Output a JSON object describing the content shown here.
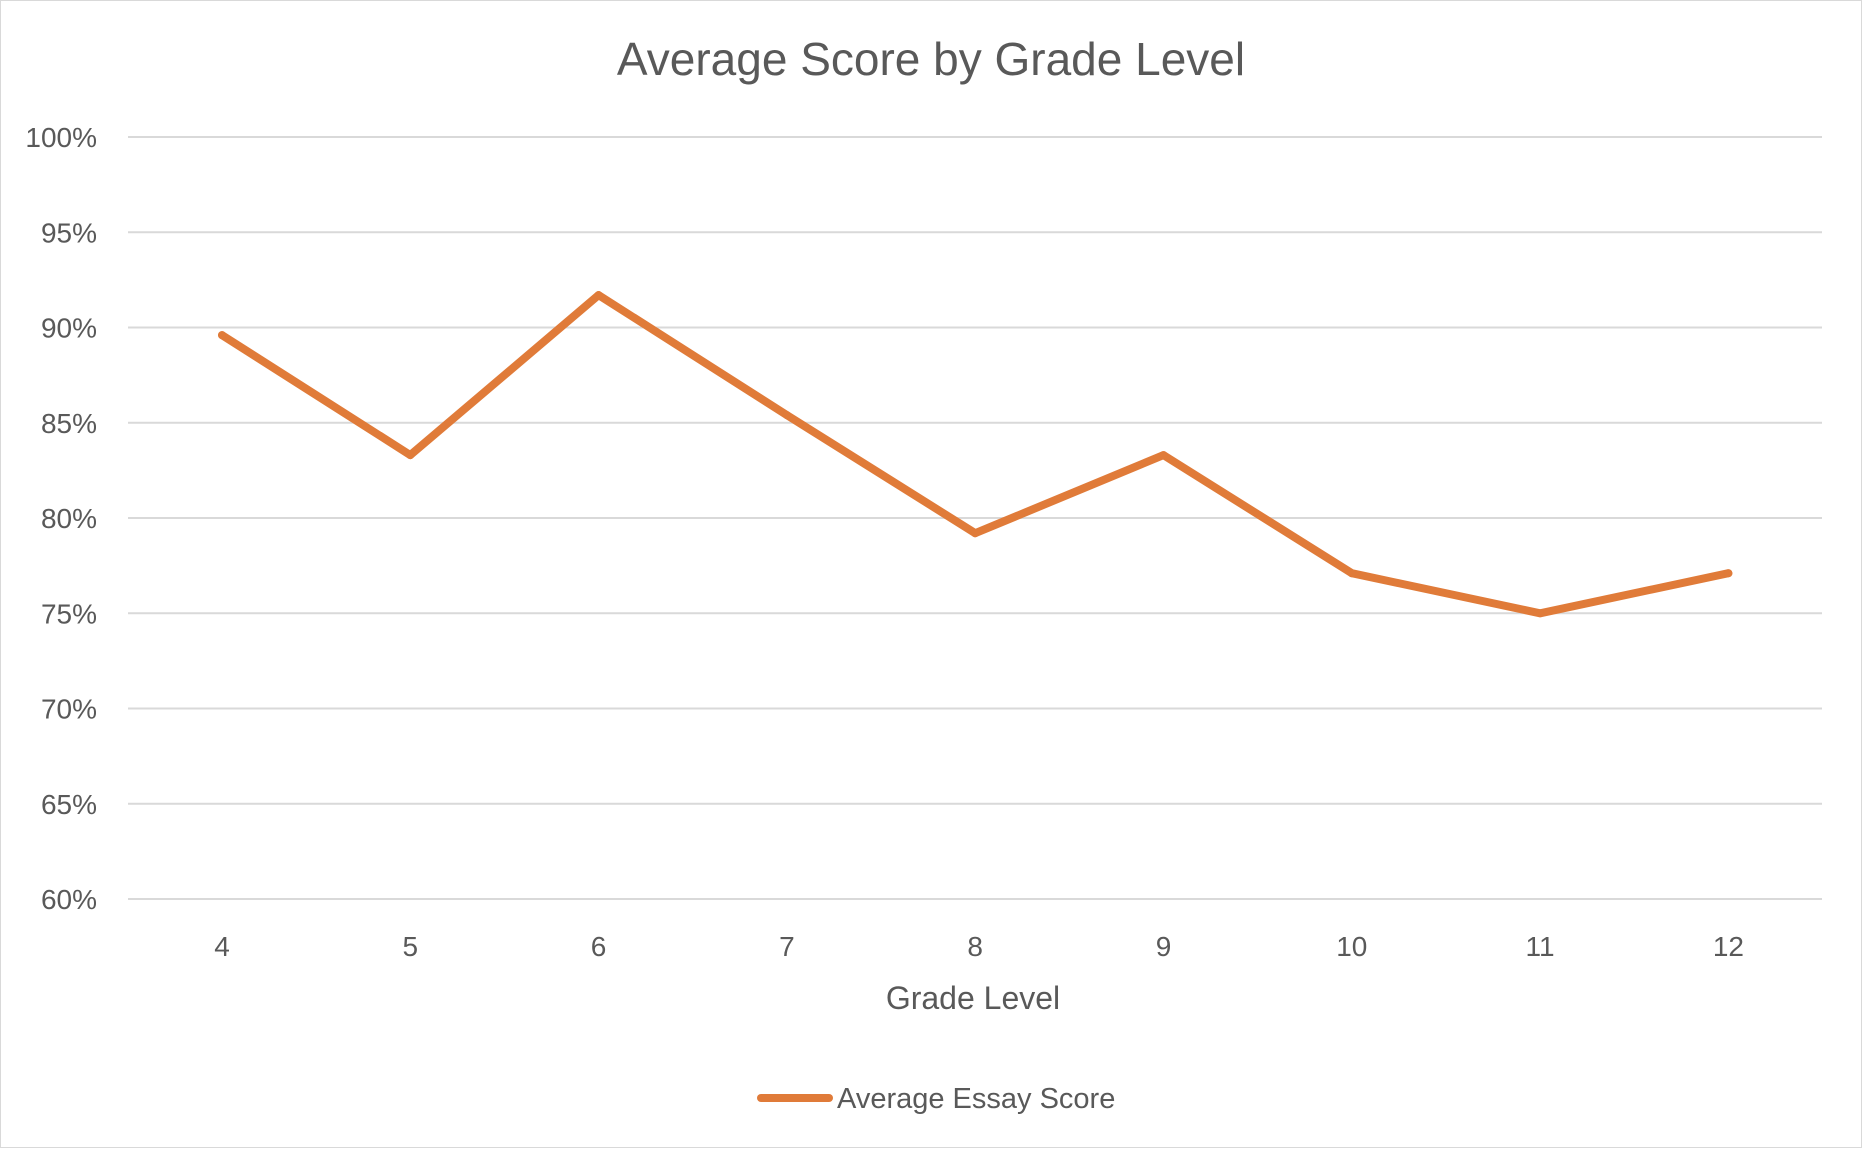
{
  "chart_data": {
    "type": "line",
    "title": "Average Score by Grade Level",
    "xlabel": "Grade Level",
    "ylabel": "",
    "categories": [
      "4",
      "5",
      "6",
      "7",
      "8",
      "9",
      "10",
      "11",
      "12"
    ],
    "series": [
      {
        "name": "Average Essay Score",
        "values": [
          0.896,
          0.833,
          0.917,
          0.854,
          0.792,
          0.833,
          0.771,
          0.75,
          0.771
        ],
        "color": "#E07B39"
      }
    ],
    "y_ticks": [
      "60%",
      "65%",
      "70%",
      "75%",
      "80%",
      "85%",
      "90%",
      "95%",
      "100%"
    ],
    "ylim": [
      0.6,
      1.0
    ],
    "grid": true,
    "legend_position": "bottom",
    "colors": {
      "gridline": "#d9d9d9",
      "text": "#595959"
    }
  }
}
